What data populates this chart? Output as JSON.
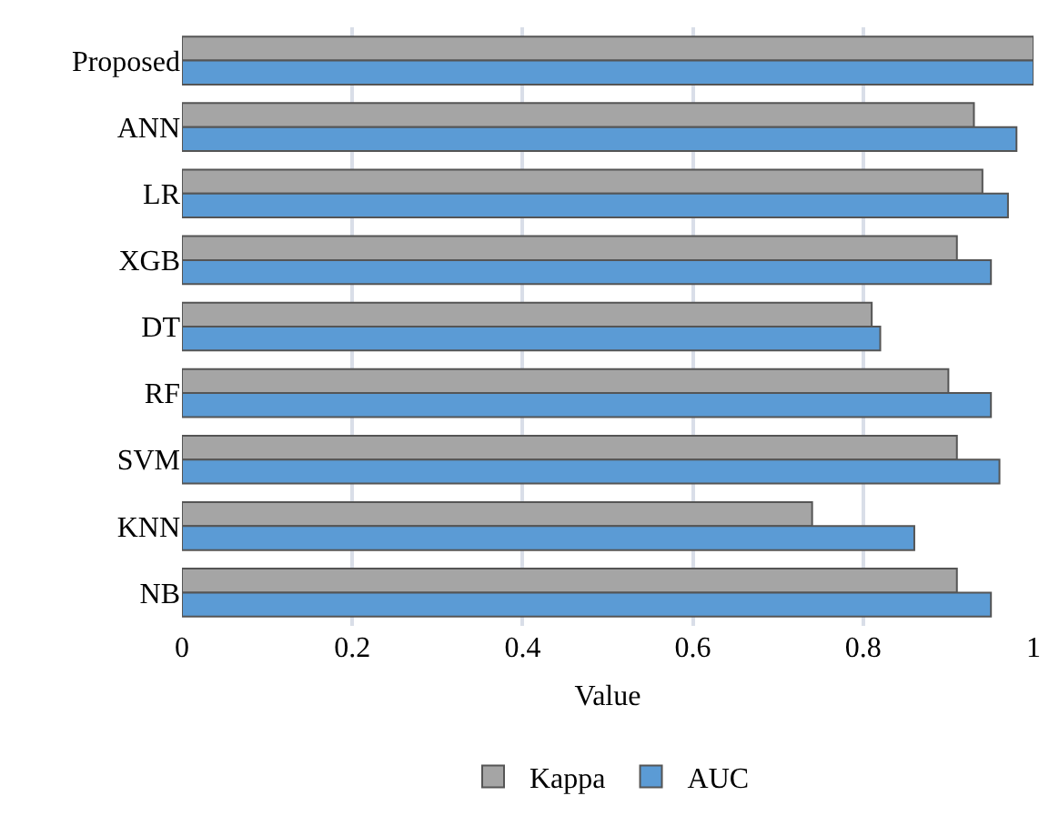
{
  "chart_data": {
    "type": "bar",
    "orientation": "horizontal",
    "xlabel": "Value",
    "categories": [
      "Proposed",
      "ANN",
      "LR",
      "XGB",
      "DT",
      "RF",
      "SVM",
      "KNN",
      "NB"
    ],
    "series": [
      {
        "name": "Kappa",
        "color": "#a5a5a5",
        "values": [
          1.0,
          0.93,
          0.94,
          0.91,
          0.81,
          0.9,
          0.91,
          0.74,
          0.91
        ]
      },
      {
        "name": "AUC",
        "color": "#5b9bd5",
        "values": [
          1.0,
          0.98,
          0.97,
          0.95,
          0.82,
          0.95,
          0.96,
          0.86,
          0.95
        ]
      }
    ],
    "xlim": [
      0,
      1
    ],
    "xticks": [
      0,
      0.2,
      0.4,
      0.6,
      0.8,
      1
    ],
    "grid": "x",
    "legend": "bottom"
  }
}
